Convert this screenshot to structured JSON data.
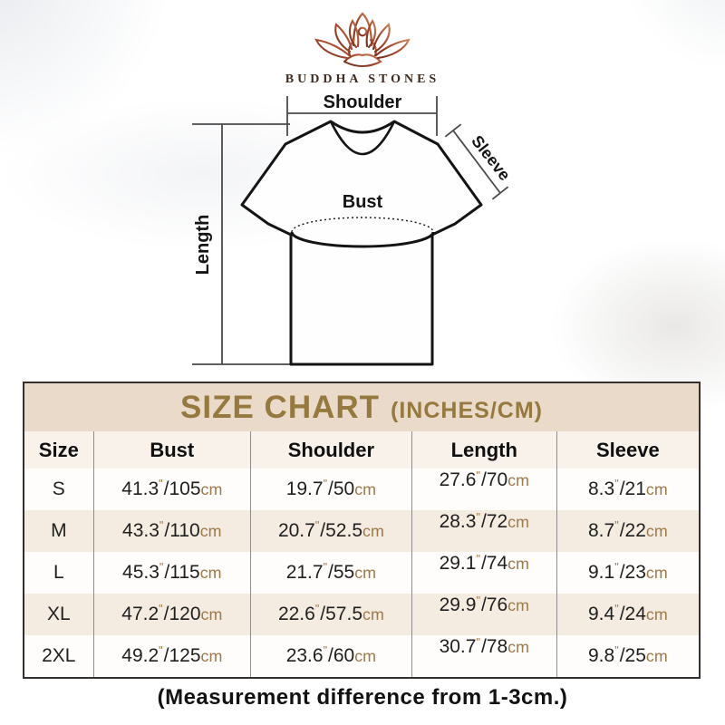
{
  "brand": {
    "name": "BUDDHA STONES"
  },
  "diagram": {
    "labels": {
      "shoulder": "Shoulder",
      "sleeve": "Sleeve",
      "bust": "Bust",
      "length": "Length"
    }
  },
  "size_chart": {
    "title": "SIZE CHART",
    "subtitle": "(INCHES/CM)",
    "columns": [
      "Size",
      "Bust",
      "Shoulder",
      "Length",
      "Sleeve"
    ],
    "inch_mark": "\"",
    "separator": "/",
    "cm_unit": "cm",
    "measure_keys": [
      "bust",
      "shoulder",
      "length",
      "sleeve"
    ],
    "rows": [
      {
        "size": "S",
        "bust_in": "41.3",
        "bust_cm": "105",
        "shoulder_in": "19.7",
        "shoulder_cm": "50",
        "length_in": "27.6",
        "length_cm": "70",
        "sleeve_in": "8.3",
        "sleeve_cm": "21"
      },
      {
        "size": "M",
        "bust_in": "43.3",
        "bust_cm": "110",
        "shoulder_in": "20.7",
        "shoulder_cm": "52.5",
        "length_in": "28.3",
        "length_cm": "72",
        "sleeve_in": "8.7",
        "sleeve_cm": "22"
      },
      {
        "size": "L",
        "bust_in": "45.3",
        "bust_cm": "115",
        "shoulder_in": "21.7",
        "shoulder_cm": "55",
        "length_in": "29.1",
        "length_cm": "74",
        "sleeve_in": "9.1",
        "sleeve_cm": "23"
      },
      {
        "size": "XL",
        "bust_in": "47.2",
        "bust_cm": "120",
        "shoulder_in": "22.6",
        "shoulder_cm": "57.5",
        "length_in": "29.9",
        "length_cm": "76",
        "sleeve_in": "9.4",
        "sleeve_cm": "24"
      },
      {
        "size": "2XL",
        "bust_in": "49.2",
        "bust_cm": "125",
        "shoulder_in": "23.6",
        "shoulder_cm": "60",
        "length_in": "30.7",
        "length_cm": "78",
        "sleeve_in": "9.8",
        "sleeve_cm": "25"
      }
    ]
  },
  "footer": {
    "note": "(Measurement difference from 1-3cm.)"
  },
  "colors": {
    "title_band_bg": "#e9dac9",
    "title_text": "#96793f",
    "row_alt_bg": "#f4ebe1",
    "header_row_bg": "#f8f2ea",
    "unit_text": "#9d7a48",
    "table_border": "#33302d",
    "logo_maroon": "#7d3322",
    "logo_copper": "#c98157",
    "brand_text": "#3e2a1e"
  }
}
